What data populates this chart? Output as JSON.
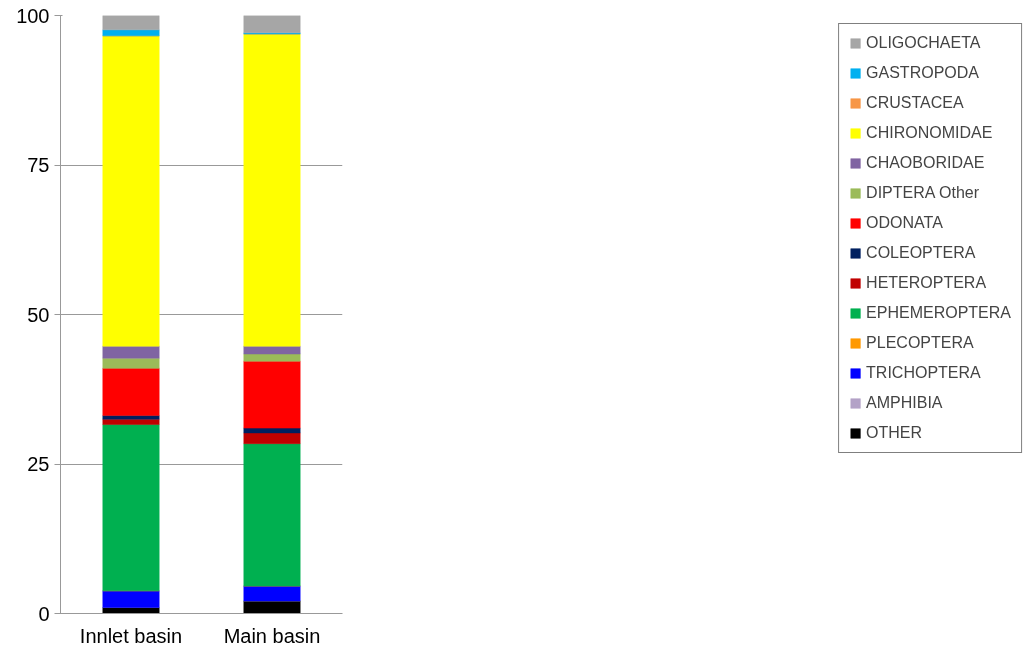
{
  "chart_data": {
    "type": "bar",
    "stacked": true,
    "categories": [
      "Innlet basin",
      "Main basin"
    ],
    "series": [
      {
        "name": "OTHER",
        "color": "#000000",
        "values": [
          1.0,
          2.1
        ]
      },
      {
        "name": "AMPHIBIA",
        "color": "#b3a2c7",
        "values": [
          0,
          0
        ]
      },
      {
        "name": "TRICHOPTERA",
        "color": "#0000ff",
        "values": [
          2.8,
          2.5
        ]
      },
      {
        "name": "PLECOPTERA",
        "color": "#ff9900",
        "values": [
          0,
          0
        ]
      },
      {
        "name": "EPHEMEROPTERA",
        "color": "#00b050",
        "values": [
          27.8,
          23.8
        ]
      },
      {
        "name": "HETEROPTERA",
        "color": "#c00000",
        "values": [
          0.9,
          1.8
        ]
      },
      {
        "name": "COLEOPTERA",
        "color": "#002060",
        "values": [
          0.6,
          0.8
        ]
      },
      {
        "name": "ODONATA",
        "color": "#ff0000",
        "values": [
          7.9,
          11.2
        ]
      },
      {
        "name": "DIPTERA Other",
        "color": "#9bbb59",
        "values": [
          1.7,
          1.2
        ]
      },
      {
        "name": "CHAOBORIDAE",
        "color": "#8064a2",
        "values": [
          2.0,
          1.3
        ]
      },
      {
        "name": "CHIRONOMIDAE",
        "color": "#ffff00",
        "values": [
          51.9,
          52.2
        ]
      },
      {
        "name": "CRUSTACEA",
        "color": "#f79646",
        "values": [
          0,
          0
        ]
      },
      {
        "name": "GASTROPODA",
        "color": "#00b0f0",
        "values": [
          1.0,
          0.2
        ]
      },
      {
        "name": "OLIGOCHAETA",
        "color": "#a6a6a6",
        "values": [
          2.4,
          2.9
        ]
      }
    ],
    "ylim": [
      0,
      100
    ],
    "yticks": [
      0,
      25,
      50,
      75,
      100
    ],
    "grid": "y",
    "legend": "right"
  }
}
